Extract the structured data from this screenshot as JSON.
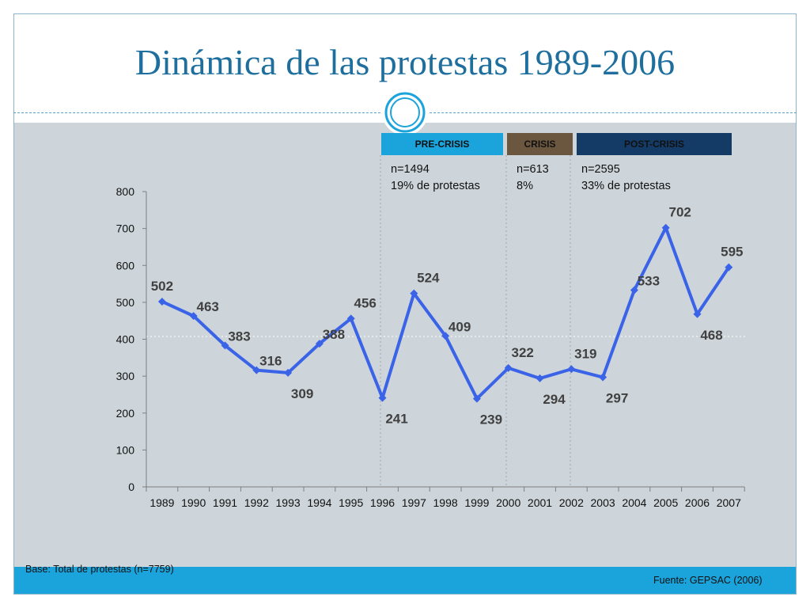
{
  "slide": {
    "title": "Dinámica de las protestas 1989-2006",
    "base_note": "Base: Total de protestas (n=7759)",
    "source_note": "Fuente: GEPSAC (2006)"
  },
  "periods": [
    {
      "label": "PRE-CRISIS",
      "n": "n=1494",
      "share": "19% de protestas",
      "color": "#1ba3dc"
    },
    {
      "label": "CRISIS",
      "n": "n=613",
      "share": "8%",
      "color": "#6b5740"
    },
    {
      "label": "POST-CRISIS",
      "n": "n=2595",
      "share": "33% de protestas",
      "color": "#143a66"
    }
  ],
  "colors": {
    "line": "#3a63e8",
    "title": "#1f6f9e",
    "background": "#cdd5da",
    "footer": "#1ba3dc"
  },
  "chart_data": {
    "type": "line",
    "x": [
      "1989",
      "1990",
      "1991",
      "1992",
      "1993",
      "1994",
      "1995",
      "1996",
      "1997",
      "1998",
      "1999",
      "2000",
      "2001",
      "2002",
      "2003",
      "2004",
      "2005",
      "2006",
      "2007"
    ],
    "values": [
      502,
      463,
      383,
      316,
      309,
      388,
      456,
      241,
      524,
      409,
      239,
      322,
      294,
      319,
      297,
      533,
      702,
      468,
      595
    ],
    "ylim": [
      0,
      800
    ],
    "yticks": [
      0,
      100,
      200,
      300,
      400,
      500,
      600,
      700,
      800
    ],
    "grid": false,
    "data_labels": true
  }
}
